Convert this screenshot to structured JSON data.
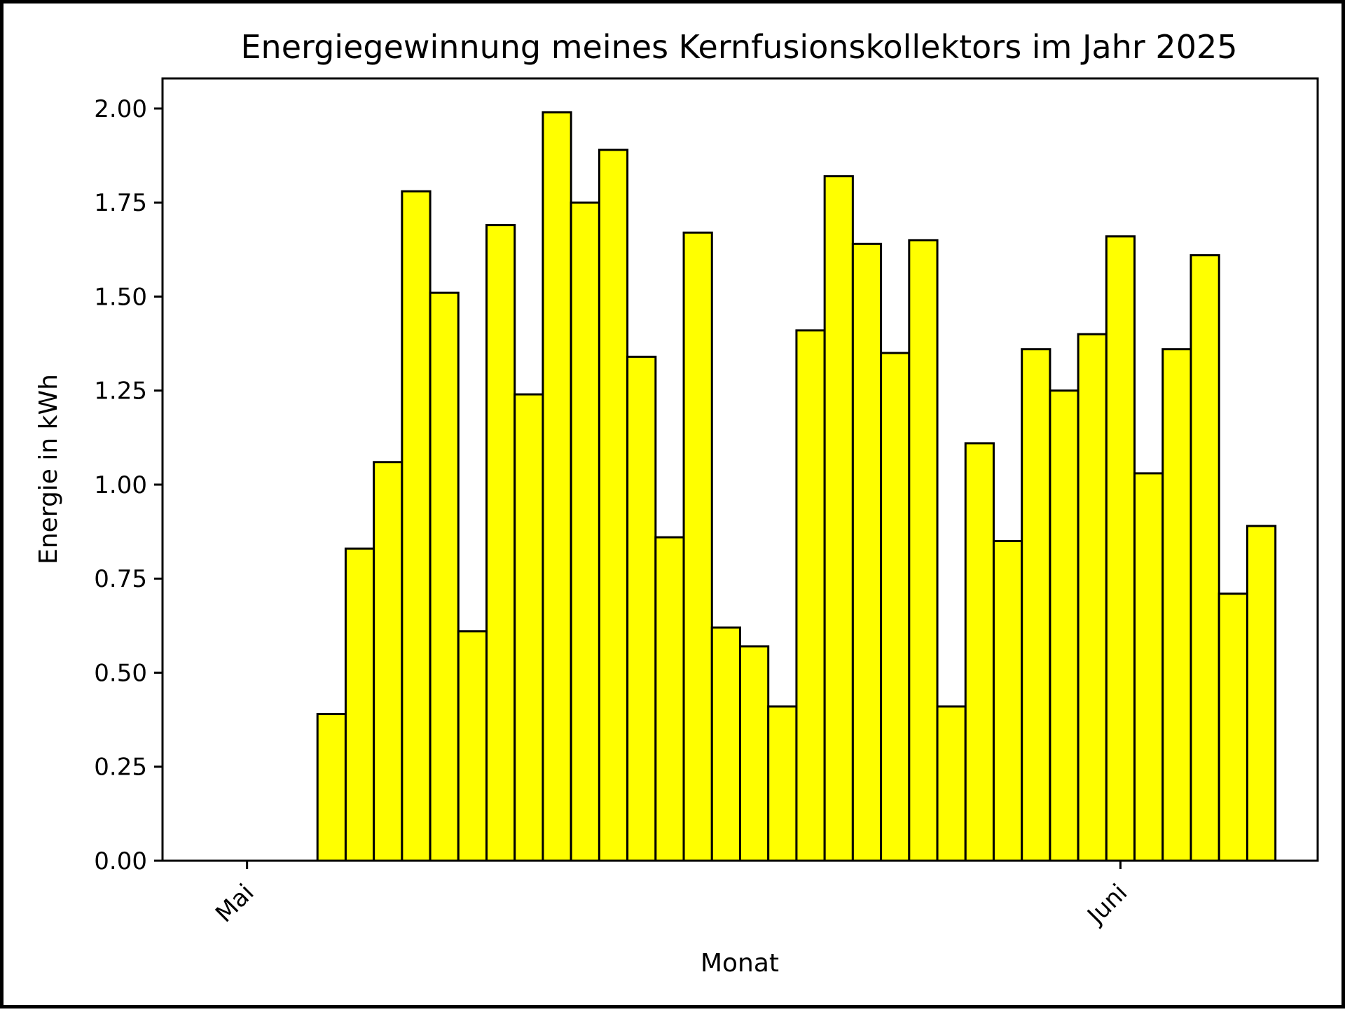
{
  "chart_data": {
    "type": "bar",
    "title": "Energiegewinnung meines Kernfusionskollektors im Jahr 2025",
    "xlabel": "Monat",
    "ylabel": "Energie in kWh",
    "x_tick_labels": [
      {
        "label": "Mai",
        "date": "2025-05-01"
      },
      {
        "label": "Juni",
        "date": "2025-06-01"
      }
    ],
    "y_ticks": [
      0.0,
      0.25,
      0.5,
      0.75,
      1.0,
      1.25,
      1.5,
      1.75,
      2.0
    ],
    "y_tick_labels": [
      "0.00",
      "0.25",
      "0.50",
      "0.75",
      "1.00",
      "1.25",
      "1.50",
      "1.75",
      "2.00"
    ],
    "xlim": [
      "2025-04-28",
      "2025-06-08"
    ],
    "ylim": [
      0,
      2.08
    ],
    "grid": false,
    "legend": "none",
    "bar_color": "#ffff00",
    "edge_color": "#000000",
    "dates": [
      "2025-05-01",
      "2025-05-02",
      "2025-05-03",
      "2025-05-04",
      "2025-05-05",
      "2025-05-06",
      "2025-05-07",
      "2025-05-08",
      "2025-05-09",
      "2025-05-10",
      "2025-05-11",
      "2025-05-12",
      "2025-05-13",
      "2025-05-14",
      "2025-05-15",
      "2025-05-16",
      "2025-05-17",
      "2025-05-18",
      "2025-05-19",
      "2025-05-20",
      "2025-05-21",
      "2025-05-22",
      "2025-05-23",
      "2025-05-24",
      "2025-05-25",
      "2025-05-26",
      "2025-05-27",
      "2025-05-28",
      "2025-05-29",
      "2025-05-30",
      "2025-05-31",
      "2025-06-01",
      "2025-06-02",
      "2025-06-03",
      "2025-06-04",
      "2025-06-05",
      "2025-06-06"
    ],
    "values": [
      0.0,
      0.0,
      0.39,
      0.83,
      1.06,
      1.78,
      1.51,
      0.61,
      1.69,
      1.24,
      1.99,
      1.75,
      1.89,
      1.34,
      0.86,
      1.67,
      0.62,
      0.57,
      0.41,
      1.41,
      1.82,
      1.64,
      1.35,
      1.65,
      0.41,
      1.11,
      0.85,
      1.36,
      1.25,
      1.4,
      1.66,
      1.03,
      1.36,
      1.61,
      0.71,
      0.89,
      0.0
    ]
  }
}
